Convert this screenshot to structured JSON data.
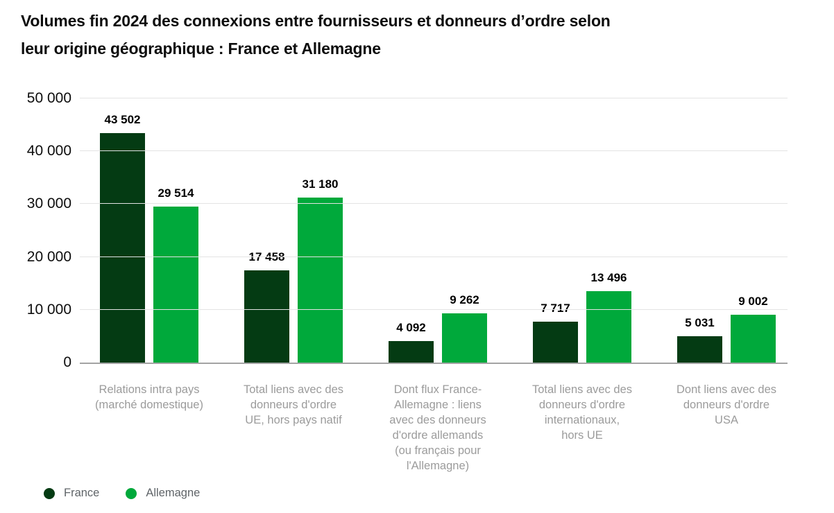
{
  "header": {
    "title_line1": "Volumes fin 2024 des connexions entre fournisseurs et donneurs d’ordre selon",
    "title_line2": "leur origine géographique : France et Allemagne"
  },
  "legend": {
    "items": [
      {
        "label": "France",
        "color": "#043b13"
      },
      {
        "label": "Allemagne",
        "color": "#00a93b"
      }
    ]
  },
  "chart_data": {
    "type": "bar",
    "title": "Volumes fin 2024 des connexions entre fournisseurs et donneurs d’ordre selon leur origine géographique : France et Allemagne",
    "categories": [
      "Relations intra pays (marché domestique)",
      "Total liens avec des donneurs d'ordre UE, hors pays natif",
      "Dont flux France-Allemagne : liens avec des donneurs d'ordre allemands (ou français pour l'Allemagne)",
      "Total liens avec des donneurs d'ordre internationaux, hors UE",
      "Dont liens avec des donneurs d'ordre USA"
    ],
    "category_display_lines": [
      [
        "Relations intra pays",
        "(marché domestique)"
      ],
      [
        "Total liens avec des",
        "donneurs d'ordre",
        "UE, hors pays natif"
      ],
      [
        "Dont flux France-",
        "Allemagne : liens",
        "avec des donneurs",
        "d'ordre allemands",
        "(ou français pour",
        "l'Allemagne)"
      ],
      [
        "Total liens avec des",
        "donneurs d'ordre",
        "internationaux,",
        "hors UE"
      ],
      [
        "Dont liens avec des",
        "donneurs d'ordre",
        "USA"
      ]
    ],
    "series": [
      {
        "name": "France",
        "color": "#043b13",
        "values": [
          43502,
          17458,
          4092,
          7717,
          5031
        ],
        "value_labels": [
          "43 502",
          "17 458",
          "4 092",
          "7 717",
          "5 031"
        ]
      },
      {
        "name": "Allemagne",
        "color": "#00a93b",
        "values": [
          29514,
          31180,
          9262,
          13496,
          9002
        ],
        "value_labels": [
          "29 514",
          "31 180",
          "9 262",
          "13 496",
          "9 002"
        ]
      }
    ],
    "ylim": [
      0,
      50000
    ],
    "yticks": [
      0,
      10000,
      20000,
      30000,
      40000,
      50000
    ],
    "ytick_labels": [
      "0",
      "10 000",
      "20 000",
      "30 000",
      "40 000",
      "50 000"
    ],
    "grid": true,
    "legend_position": "bottom-left"
  }
}
